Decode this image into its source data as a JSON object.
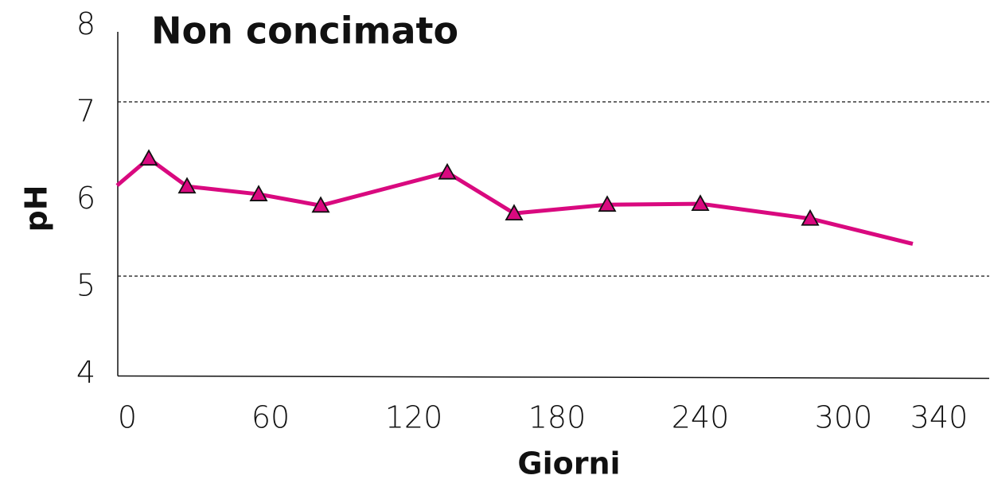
{
  "chart_data": {
    "type": "line",
    "title": "Non concimato",
    "xlabel": "Giorni",
    "ylabel": "pH",
    "x": [
      -4.3,
      9,
      25,
      55,
      81,
      134,
      162,
      201,
      240,
      286,
      329
    ],
    "series": [
      {
        "name": "Non concimato",
        "color": "#d9097f",
        "values": [
          6.04,
          6.35,
          6.03,
          5.94,
          5.81,
          6.19,
          5.72,
          5.82,
          5.83,
          5.66,
          5.37
        ],
        "markers": [
          false,
          true,
          true,
          true,
          true,
          true,
          true,
          true,
          true,
          true,
          false
        ]
      }
    ],
    "xlim": [
      -4,
      361
    ],
    "xticks": [
      0,
      60,
      120,
      180,
      240,
      300,
      340
    ],
    "ylim": [
      4,
      8
    ],
    "yticks": [
      4,
      5,
      6,
      7,
      8
    ],
    "grid_lines": [
      5,
      7
    ]
  }
}
